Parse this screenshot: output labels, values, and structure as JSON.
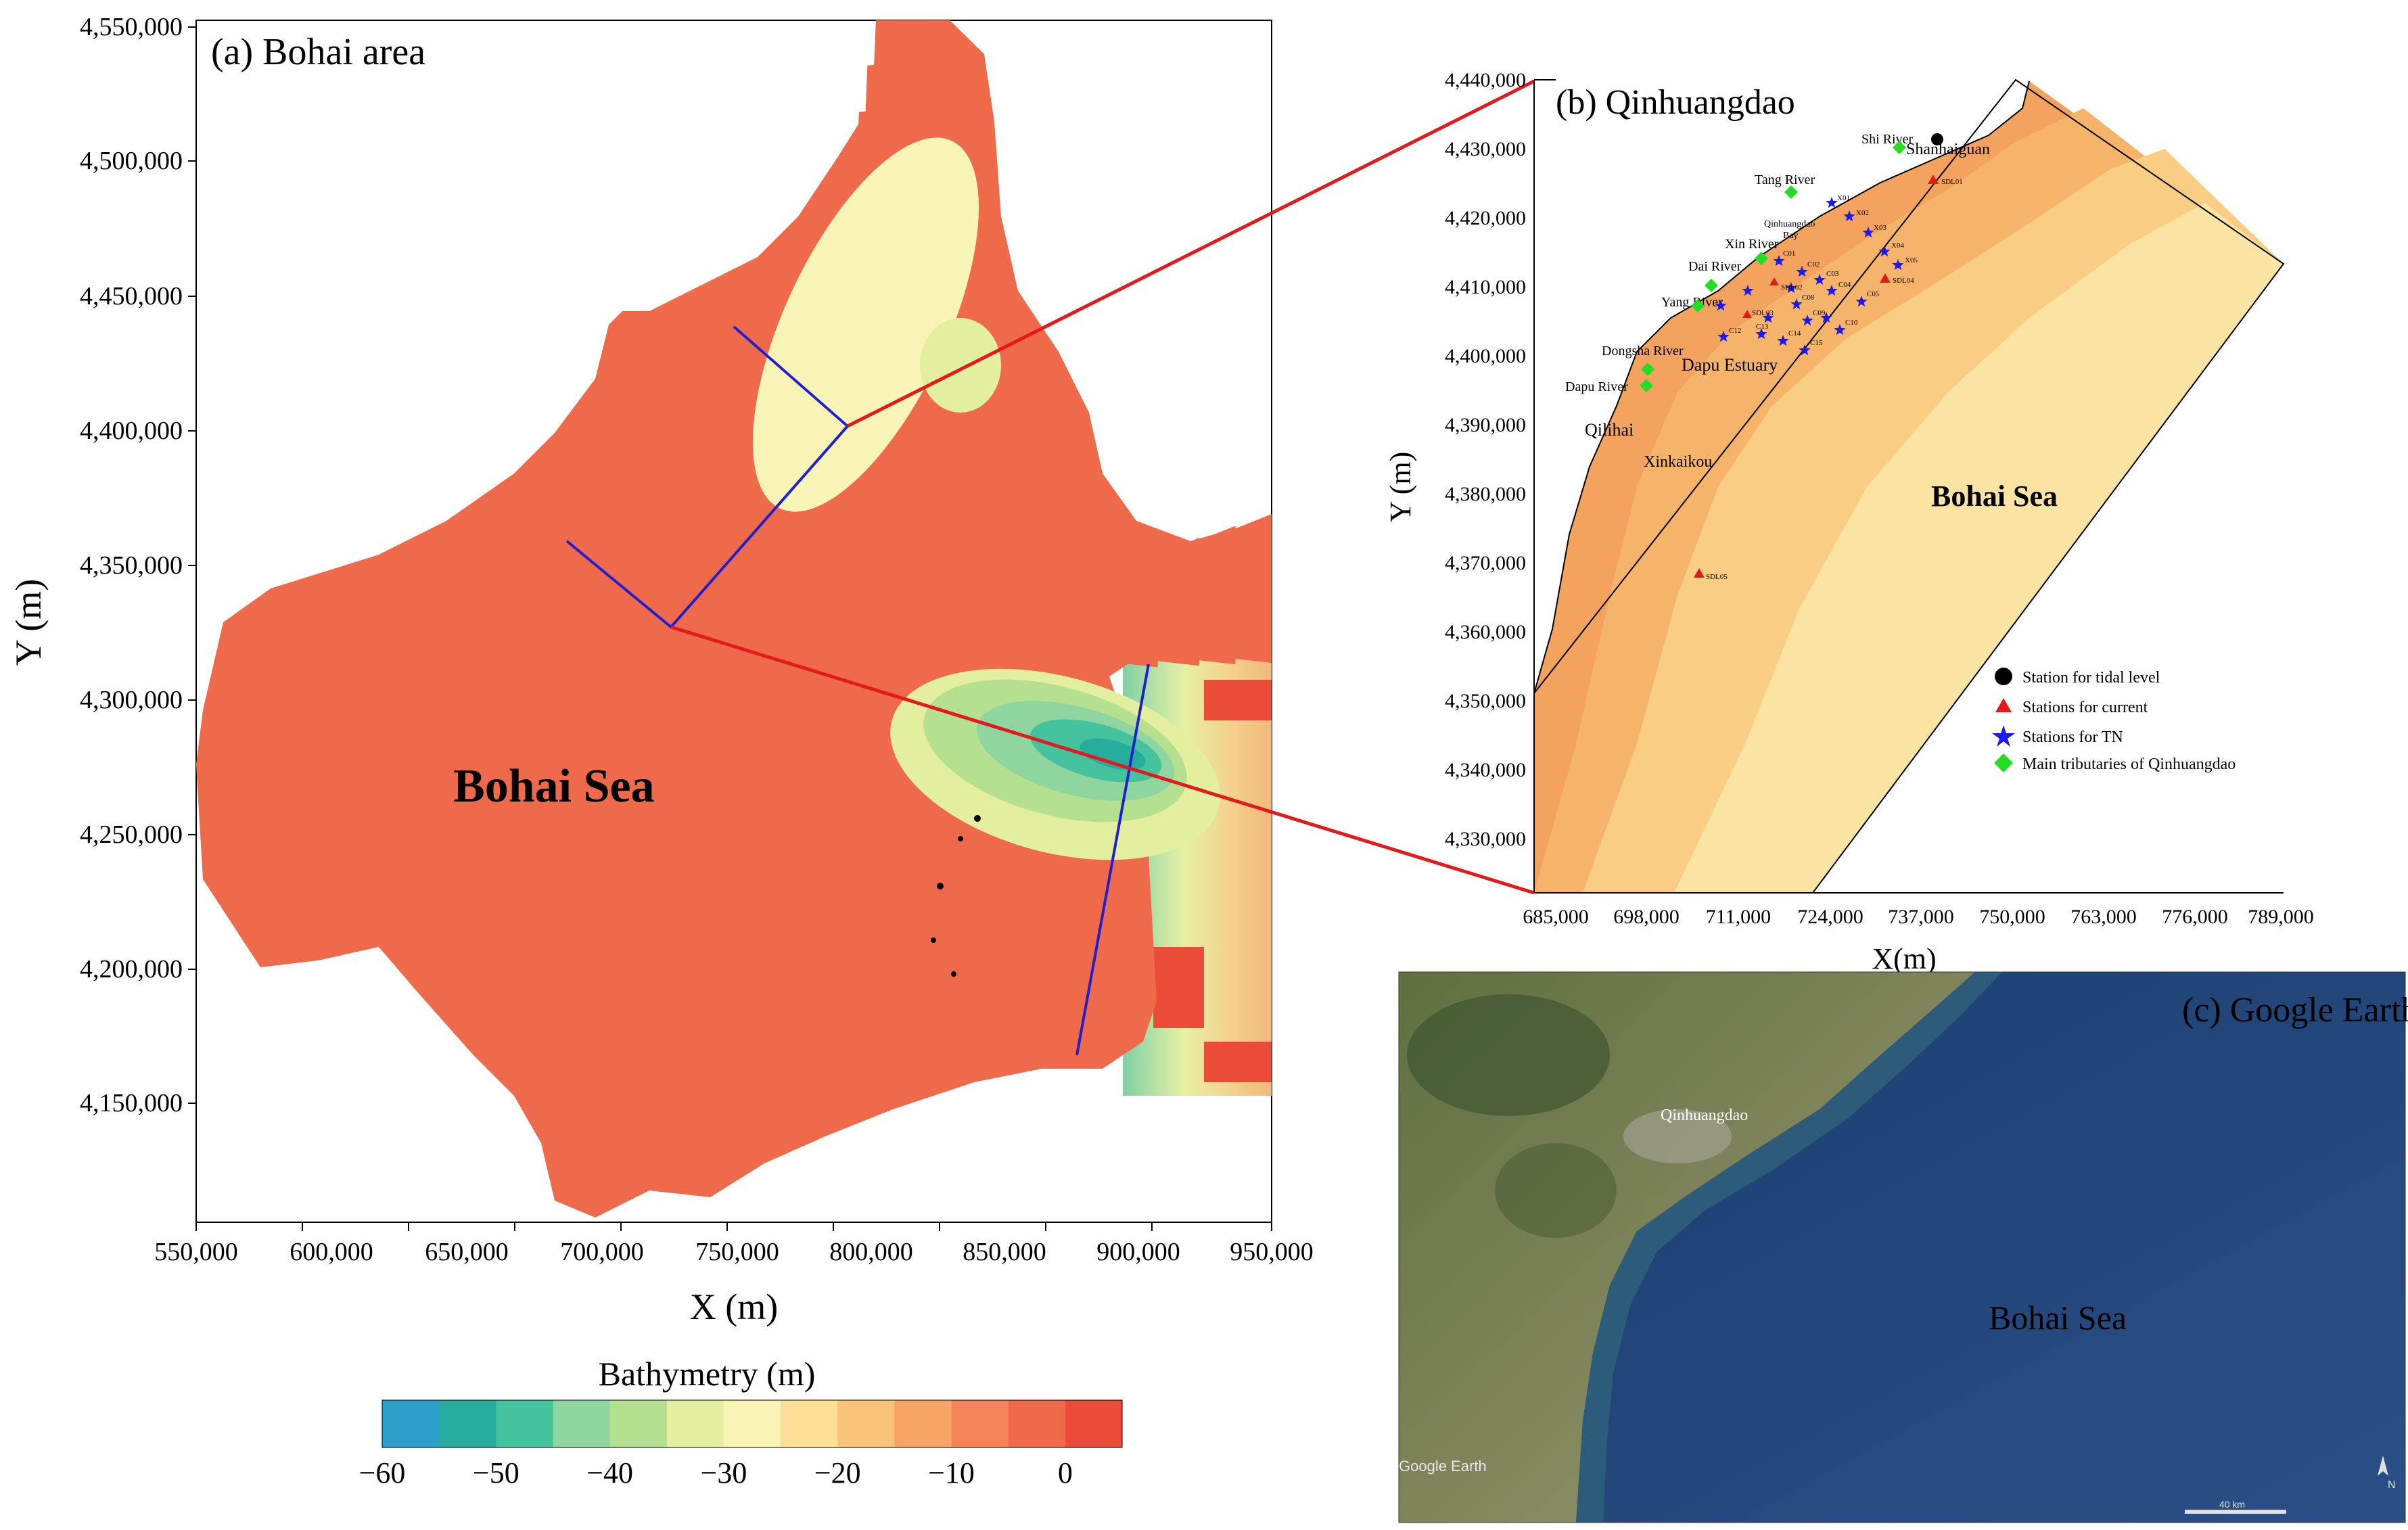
{
  "panel_a": {
    "label": "(a) Bohai area",
    "sea_label": "Bohai Sea",
    "xlabel": "X (m)",
    "ylabel": "Y (m)",
    "x_ticks": [
      "550,000",
      "600,000",
      "650,000",
      "700,000",
      "750,000",
      "800,000",
      "850,000",
      "900,000",
      "950,000"
    ],
    "y_ticks": [
      "4,550,000",
      "4,500,000",
      "4,450,000",
      "4,400,000",
      "4,350,000",
      "4,300,000",
      "4,250,000",
      "4,200,000",
      "4,150,000"
    ],
    "colorbar": {
      "title": "Bathymetry (m)",
      "ticks": [
        "−60",
        "−50",
        "−40",
        "−30",
        "−20",
        "−10",
        "0"
      ],
      "colors": [
        "#2b9fc9",
        "#27ad9e",
        "#45c39f",
        "#8ed5a0",
        "#b5e08f",
        "#e3ef9f",
        "#f8f4b6",
        "#fbe096",
        "#f9c47a",
        "#f6a566",
        "#f28457",
        "#ef6a4a",
        "#eb4b39"
      ]
    }
  },
  "panel_b": {
    "label": "(b) Qinhuangdao",
    "sea_label": "Bohai Sea",
    "xlabel": "X(m)",
    "ylabel": "Y (m)",
    "x_ticks": [
      "685,000",
      "698,000",
      "711,000",
      "724,000",
      "737,000",
      "750,000",
      "763,000",
      "776,000",
      "789,000"
    ],
    "y_ticks": [
      "4,440,000",
      "4,430,000",
      "4,420,000",
      "4,410,000",
      "4,400,000",
      "4,390,000",
      "4,380,000",
      "4,370,000",
      "4,360,000",
      "4,350,000",
      "4,340,000",
      "4,330,000"
    ],
    "places": {
      "shanhaiguan": "Shanhaiguan",
      "shi_river": "Shi River",
      "tang_river": "Tang River",
      "qhd_bay_1": "Qinhuangdao",
      "qhd_bay_2": "Bay",
      "xin_river": "Xin River",
      "dai_river": "Dai River",
      "yang_river": "Yang River",
      "dongsha_river": "Dongsha River",
      "dapu_estuary": "Dapu Estuary",
      "dapu_river": "Dapu River",
      "qilihai": "Qilihai",
      "xinkaikou": "Xinkaikou"
    },
    "legend": {
      "tidal": "Station for tidal level",
      "current": "Stations for current",
      "tn": "Stations for TN",
      "trib": "Main tributaries of Qinhuangdao"
    },
    "station_labels": [
      "SDL01",
      "SDL02",
      "SDL03",
      "SDL04",
      "SDL05",
      "X01",
      "X02",
      "X03",
      "X04",
      "X05",
      "C01",
      "C02",
      "C03",
      "C04",
      "C05",
      "C08",
      "C09",
      "C10",
      "C12",
      "C13",
      "C14",
      "C15"
    ]
  },
  "panel_c": {
    "label": "(c) Google Earth",
    "city_label": "Qinhuangdao",
    "sea_label": "Bohai Sea",
    "watermark": "Google Earth",
    "scale_label": "40 km",
    "north": "N"
  },
  "colors": {
    "outline_blue": "#1f1fcf",
    "zoom_red": "#e31a1c",
    "trib_green": "#22dd22",
    "tn_blue": "#1a1aee",
    "current_red": "#e31a1c"
  }
}
